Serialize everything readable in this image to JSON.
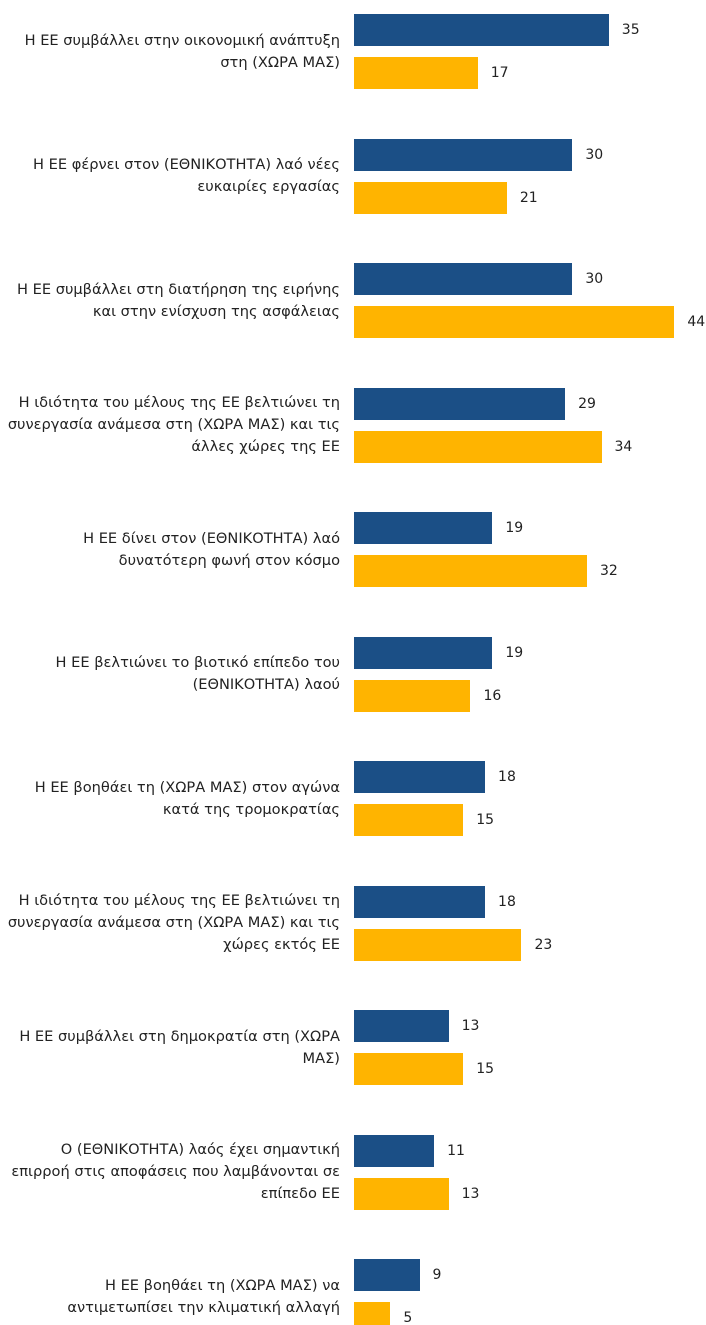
{
  "chart_data": {
    "type": "bar",
    "orientation": "horizontal",
    "categories": [
      "Η ΕΕ συμβάλλει στην οικονομική ανάπτυξη στη (ΧΩΡΑ ΜΑΣ)",
      "Η ΕΕ φέρνει στον (ΕΘΝΙΚΟΤΗΤΑ) λαό νέες ευκαιρίες εργασίας",
      "Η ΕΕ συμβάλλει στη διατήρηση της ειρήνης και στην ενίσχυση της ασφάλειας",
      "Η ιδιότητα του μέλους της ΕΕ βελτιώνει τη συνεργασία ανάμεσα στη (ΧΩΡΑ ΜΑΣ) και τις άλλες χώρες της ΕΕ",
      "Η ΕΕ δίνει στον (ΕΘΝΙΚΟΤΗΤΑ) λαό δυνατότερη φωνή στον κόσμο",
      "Η ΕΕ βελτιώνει το βιοτικό επίπεδο του (ΕΘΝΙΚΟΤΗΤΑ) λαού",
      "Η ΕΕ βοηθάει τη (ΧΩΡΑ ΜΑΣ) στον αγώνα κατά της τρομοκρατίας",
      "Η ιδιότητα του μέλους της ΕΕ βελτιώνει τη συνεργασία ανάμεσα στη (ΧΩΡΑ ΜΑΣ) και τις χώρες εκτός ΕΕ",
      "Η ΕΕ συμβάλλει στη δημοκρατία στη (ΧΩΡΑ ΜΑΣ)",
      "Ο (ΕΘΝΙΚΟΤΗΤΑ) λαός έχει σημαντική επιρροή στις αποφάσεις που λαμβάνονται σε επίπεδο ΕΕ",
      "Η ΕΕ βοηθάει τη (ΧΩΡΑ ΜΑΣ) να αντιμετωπίσει την κλιματική αλλαγή"
    ],
    "series": [
      {
        "color": "#1b4f86",
        "values": [
          35,
          30,
          30,
          29,
          19,
          19,
          18,
          18,
          13,
          11,
          9
        ]
      },
      {
        "color": "#ffb400",
        "values": [
          17,
          21,
          44,
          34,
          32,
          16,
          15,
          23,
          15,
          13,
          5
        ]
      }
    ]
  }
}
